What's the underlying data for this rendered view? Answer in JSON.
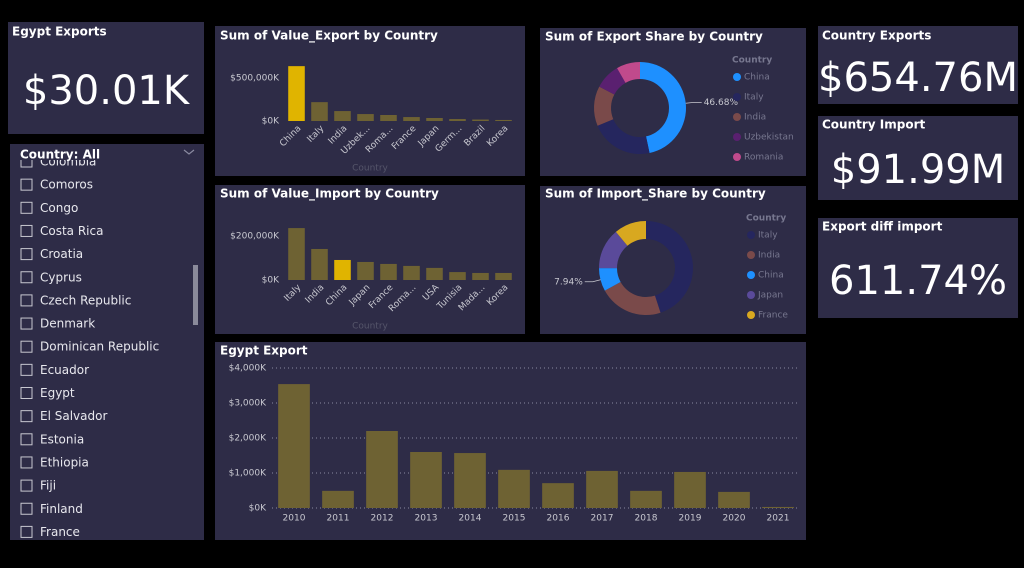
{
  "cards": [
    {
      "title": "Egypt Exports",
      "value": "$30.01K"
    },
    {
      "title": "Country Exports",
      "value": "$654.76M"
    },
    {
      "title": "Country Import",
      "value": "$91.99M"
    },
    {
      "title": "Export diff import",
      "value": "611.74%"
    }
  ],
  "slicer": {
    "title": "Country: All",
    "items": [
      "Colombia",
      "Comoros",
      "Congo",
      "Costa Rica",
      "Croatia",
      "Cyprus",
      "Czech Republic",
      "Denmark",
      "Dominican Republic",
      "Ecuador",
      "Egypt",
      "El Salvador",
      "Estonia",
      "Ethiopia",
      "Fiji",
      "Finland",
      "France"
    ]
  },
  "chart_data": [
    {
      "type": "bar",
      "title": "Sum of Value_Export by Country",
      "x_label": "Country",
      "categories": [
        "China",
        "Italy",
        "India",
        "Uzbek...",
        "Roma...",
        "France",
        "Japan",
        "Germ...",
        "Brazil",
        "Korea"
      ],
      "values": [
        640000,
        220000,
        116000,
        81000,
        70000,
        46000,
        35000,
        23000,
        17000,
        12000
      ],
      "colors": [
        "#e0b400",
        "#6e6233",
        "#6e6233",
        "#6e6233",
        "#6e6233",
        "#6e6233",
        "#6e6233",
        "#6e6233",
        "#6e6233",
        "#6e6233"
      ],
      "ylim": [
        0,
        700000
      ],
      "yticks": [
        {
          "value": 0,
          "label": "$0K"
        },
        {
          "value": 500000,
          "label": "$500,000K"
        }
      ],
      "grid": false
    },
    {
      "type": "bar",
      "title": "Sum of Value_Import by Country",
      "x_label": "Country",
      "categories": [
        "Italy",
        "India",
        "China",
        "Japan",
        "France",
        "Roma...",
        "USA",
        "Tunisia",
        "Mada...",
        "Korea"
      ],
      "values": [
        236000,
        141000,
        91000,
        82000,
        73000,
        64000,
        55000,
        36000,
        32000,
        32000
      ],
      "colors": [
        "#6e6233",
        "#6e6233",
        "#e0b400",
        "#6e6233",
        "#6e6233",
        "#6e6233",
        "#6e6233",
        "#6e6233",
        "#6e6233",
        "#6e6233"
      ],
      "ylim": [
        0,
        250000
      ],
      "yticks": [
        {
          "value": 0,
          "label": "$0K"
        },
        {
          "value": 200000,
          "label": "$200,000K"
        }
      ],
      "grid": false
    },
    {
      "type": "pie",
      "title": "Sum of Export Share by Country",
      "legend_title": "Country",
      "categories": [
        "China",
        "Italy",
        "India",
        "Uzbekistan",
        "Romania"
      ],
      "values": [
        46.68,
        22,
        14,
        9,
        8.32
      ],
      "value_labels": [
        "46.68%",
        null,
        null,
        null,
        null
      ],
      "colors": [
        "#1e90ff",
        "#25265e",
        "#7a4a4a",
        "#5a2070",
        "#c04a8c"
      ]
    },
    {
      "type": "pie",
      "title": "Sum of Import_Share by Country",
      "legend_title": "Country",
      "categories": [
        "Italy",
        "India",
        "China",
        "Japan",
        "France"
      ],
      "values": [
        45,
        22,
        7.94,
        14,
        11.06
      ],
      "value_labels": [
        null,
        null,
        "7.94%",
        null,
        null
      ],
      "colors": [
        "#25265e",
        "#7a4a4a",
        "#1e90ff",
        "#5a4a9a",
        "#d8a820"
      ]
    },
    {
      "type": "bar",
      "title": "Egypt Export",
      "categories": [
        "2010",
        "2011",
        "2012",
        "2013",
        "2014",
        "2015",
        "2016",
        "2017",
        "2018",
        "2019",
        "2020",
        "2021"
      ],
      "values": [
        3540,
        490,
        2200,
        1600,
        1570,
        1090,
        710,
        1060,
        490,
        1030,
        460,
        30
      ],
      "color": "#6e6233",
      "ylim": [
        0,
        4000
      ],
      "yticks": [
        {
          "value": 0,
          "label": "$0K"
        },
        {
          "value": 1000,
          "label": "$1,000K"
        },
        {
          "value": 2000,
          "label": "$2,000K"
        },
        {
          "value": 3000,
          "label": "$3,000K"
        },
        {
          "value": 4000,
          "label": "$4,000K"
        }
      ],
      "grid": true
    }
  ]
}
